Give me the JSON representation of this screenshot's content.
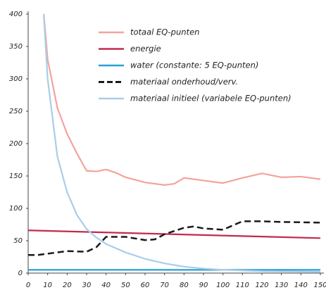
{
  "chart_data": {
    "type": "line",
    "xlim": [
      0,
      150
    ],
    "xticks": [
      0,
      10,
      20,
      30,
      40,
      50,
      60,
      70,
      80,
      90,
      100,
      110,
      120,
      130,
      140,
      150
    ],
    "ylim": [
      0,
      400
    ],
    "yticks": [
      0,
      50,
      100,
      150,
      200,
      250,
      300,
      350,
      400
    ],
    "grid": false,
    "legend": "top",
    "series": [
      {
        "name": "totaal EQ-punten",
        "color": "#f4a39c",
        "dash": false,
        "x": [
          8,
          10,
          15,
          20,
          25,
          30,
          35,
          40,
          45,
          50,
          60,
          70,
          75,
          80,
          90,
          100,
          110,
          120,
          130,
          140,
          150
        ],
        "values": [
          400,
          330,
          255,
          215,
          185,
          158,
          157,
          160,
          155,
          148,
          140,
          136,
          138,
          147,
          143,
          139,
          147,
          154,
          148,
          149,
          145
        ]
      },
      {
        "name": "energie",
        "color": "#c22a4d",
        "dash": false,
        "x": [
          0,
          150
        ],
        "values": [
          66,
          54
        ]
      },
      {
        "name": "water (constante: 5 EQ-punten)",
        "color": "#2a9fd6",
        "dash": false,
        "x": [
          0,
          150
        ],
        "values": [
          5,
          5
        ]
      },
      {
        "name": "materiaal onderhoud/verv.",
        "color": "#1a1a1a",
        "dash": true,
        "x": [
          0,
          5,
          10,
          20,
          30,
          35,
          40,
          50,
          60,
          65,
          70,
          80,
          85,
          90,
          100,
          110,
          120,
          130,
          150
        ],
        "values": [
          28,
          28,
          30,
          34,
          33,
          40,
          56,
          56,
          51,
          52,
          60,
          70,
          72,
          69,
          67,
          80,
          80,
          79,
          78
        ]
      },
      {
        "name": "materiaal initieel (variabele EQ-punten)",
        "color": "#a9cde9",
        "dash": false,
        "x": [
          8,
          10,
          15,
          20,
          25,
          30,
          35,
          40,
          50,
          60,
          70,
          80,
          90,
          100,
          120,
          150
        ],
        "values": [
          400,
          300,
          180,
          125,
          90,
          68,
          55,
          45,
          32,
          22,
          15,
          10,
          7,
          5,
          3,
          2
        ]
      }
    ]
  }
}
